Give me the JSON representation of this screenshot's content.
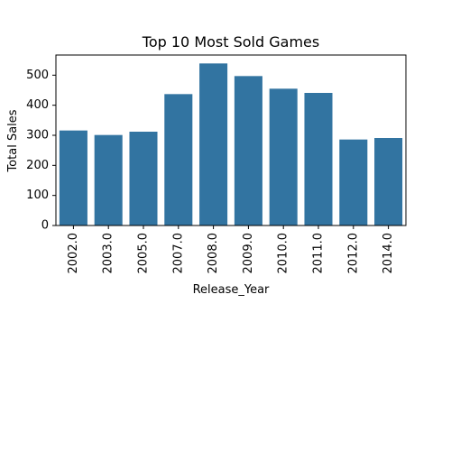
{
  "chart_data": {
    "type": "bar",
    "title": "Top 10 Most Sold Games",
    "xlabel": "Release_Year",
    "ylabel": "Total Sales",
    "categories": [
      "2002.0",
      "2003.0",
      "2005.0",
      "2007.0",
      "2008.0",
      "2009.0",
      "2010.0",
      "2011.0",
      "2012.0",
      "2014.0"
    ],
    "values": [
      316,
      301,
      312,
      437,
      539,
      497,
      455,
      441,
      286,
      291
    ],
    "ylim": [
      0,
      567
    ],
    "yticks": [
      0,
      100,
      200,
      300,
      400,
      500
    ],
    "bar_color": "#3274a1",
    "grid": false,
    "legend": "none"
  }
}
